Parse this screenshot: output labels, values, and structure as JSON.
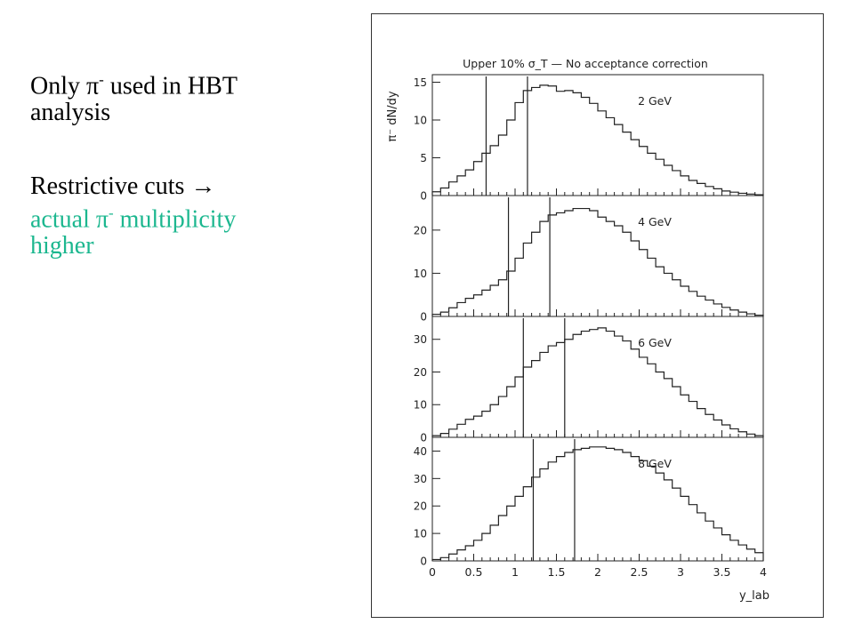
{
  "slide": {
    "block1": {
      "pre": "Only ",
      "pi": "π",
      "sup": "-",
      "post": " used in HBT",
      "line2": "analysis"
    },
    "block2": {
      "line1_text": "Restrictive cuts ",
      "arrow": "→",
      "line2_pre": "actual ",
      "pi": "π",
      "sup": "-",
      "line2_post": " multiplicity",
      "line3": "higher",
      "accent_color": "#1cb78f"
    }
  },
  "chart_data": {
    "type": "histogram",
    "title": "Upper 10% σ_T — No acceptance correction",
    "ylabel": "π⁻ dN/dy",
    "xlabel": "y_lab",
    "xlim": [
      0,
      4
    ],
    "x_ticks": [
      "0",
      "0.5",
      "1",
      "1.5",
      "2",
      "2.5",
      "3",
      "3.5",
      "4"
    ],
    "bin_width": 0.1,
    "panels": [
      {
        "name": "2 GeV",
        "ylim": [
          0,
          16
        ],
        "y_ticks": [
          0,
          5,
          10,
          15
        ],
        "cut_lines": [
          0.65,
          1.15
        ],
        "values": [
          0.5,
          1.0,
          1.8,
          2.6,
          3.4,
          4.5,
          5.6,
          6.6,
          8.0,
          10.0,
          12.3,
          13.9,
          14.3,
          14.6,
          14.5,
          13.8,
          13.9,
          13.6,
          13.0,
          12.2,
          11.2,
          10.3,
          9.4,
          8.4,
          7.4,
          6.5,
          5.6,
          4.8,
          4.0,
          3.3,
          2.6,
          2.0,
          1.6,
          1.2,
          0.9,
          0.6,
          0.45,
          0.3,
          0.2,
          0.1
        ]
      },
      {
        "name": "4 GeV",
        "ylim": [
          0,
          28
        ],
        "y_ticks": [
          0,
          10,
          20
        ],
        "cut_lines": [
          0.92,
          1.42
        ],
        "values": [
          0.5,
          1.0,
          2.0,
          3.2,
          4.2,
          5.0,
          6.1,
          7.2,
          8.5,
          10.5,
          13.5,
          17.0,
          19.5,
          22.0,
          23.5,
          24.0,
          24.5,
          25.0,
          25.0,
          24.5,
          23.0,
          22.0,
          21.0,
          19.5,
          17.5,
          15.5,
          13.5,
          11.5,
          10.0,
          8.5,
          7.0,
          5.8,
          4.7,
          3.8,
          2.9,
          2.1,
          1.5,
          1.0,
          0.6,
          0.3
        ]
      },
      {
        "name": "6 GeV",
        "ylim": [
          0,
          37
        ],
        "y_ticks": [
          0,
          10,
          20,
          30
        ],
        "cut_lines": [
          1.1,
          1.6
        ],
        "values": [
          0.5,
          1.2,
          2.5,
          4.0,
          5.5,
          6.5,
          8.0,
          10.0,
          12.5,
          15.5,
          18.5,
          21.5,
          23.5,
          26.0,
          28.0,
          29.0,
          30.0,
          31.5,
          32.5,
          33.0,
          33.5,
          32.5,
          31.0,
          29.5,
          27.0,
          24.5,
          22.5,
          20.0,
          18.0,
          15.5,
          13.0,
          11.0,
          8.8,
          7.0,
          5.3,
          3.8,
          2.6,
          1.7,
          1.0,
          0.5
        ]
      },
      {
        "name": "8 GeV",
        "ylim": [
          0,
          45
        ],
        "y_ticks": [
          0,
          10,
          20,
          30,
          40
        ],
        "cut_lines": [
          1.22,
          1.72
        ],
        "values": [
          0.5,
          1.2,
          2.5,
          4.0,
          5.5,
          7.5,
          10.0,
          13.0,
          16.5,
          20.0,
          23.5,
          27.0,
          30.5,
          33.5,
          36.0,
          38.0,
          39.5,
          40.5,
          41.0,
          41.5,
          41.5,
          41.0,
          40.5,
          39.5,
          38.0,
          36.5,
          34.5,
          32.0,
          29.5,
          26.5,
          23.5,
          20.5,
          17.5,
          14.5,
          12.0,
          9.5,
          7.5,
          5.8,
          4.3,
          3.0
        ]
      }
    ]
  }
}
